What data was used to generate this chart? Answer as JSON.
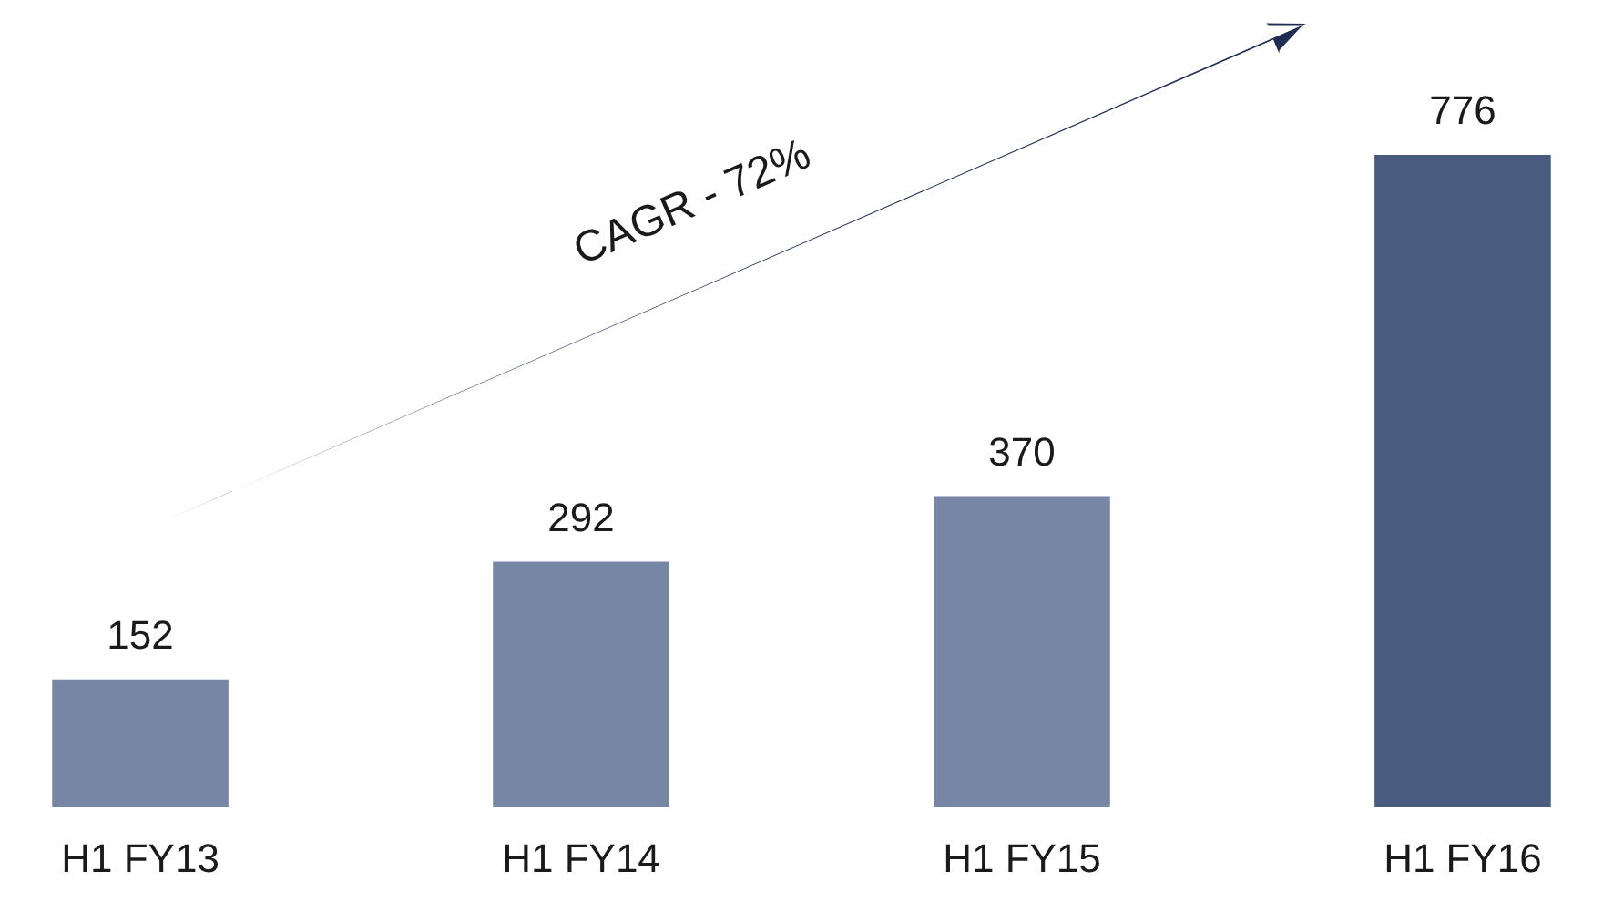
{
  "chart_data": {
    "type": "bar",
    "categories": [
      "H1 FY13",
      "H1 FY14",
      "H1 FY15",
      "H1 FY16"
    ],
    "values": [
      152,
      292,
      370,
      776
    ],
    "colors": [
      "#7886a5",
      "#7886a5",
      "#7886a5",
      "#4a5b80"
    ],
    "data_labels": true,
    "annotations": [
      "CAGR - 72%"
    ]
  }
}
